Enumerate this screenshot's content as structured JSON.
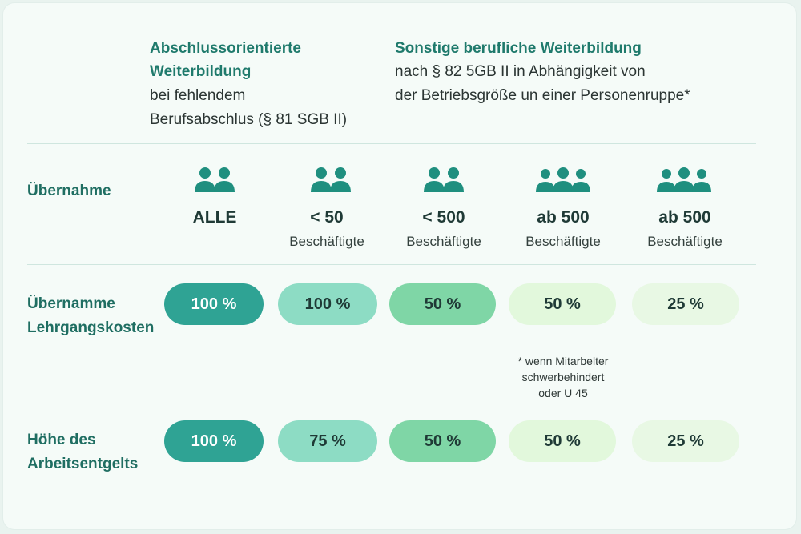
{
  "header": {
    "left_title_1": "Abschlussorientierte",
    "left_title_2": "Weiterbildung",
    "left_sub_1": "bei fehlendem",
    "left_sub_2": "Berufsabschlus (§ 81 SGB II)",
    "right_title": "Sonstige berufliche Weiterbildung",
    "right_sub_1": "nach § 82 5GB II in Abhängigkeit von",
    "right_sub_2": "der Betriebsgröße un einer Personenruppe*"
  },
  "rows": {
    "uebernahme": "Übernahme",
    "lehrgang_1": "Übernamme",
    "lehrgang_2": "Lehrgangskosten",
    "entgelt_1": "Höhe des",
    "entgelt_2": "Arbeitsentgelts"
  },
  "columns": [
    {
      "main": "ALLE",
      "sub": "",
      "icon": "two-people-icon"
    },
    {
      "main": "< 50",
      "sub": "Beschäftigte",
      "icon": "two-people-icon"
    },
    {
      "main": "< 500",
      "sub": "Beschäftigte",
      "icon": "two-people-icon"
    },
    {
      "main": "ab 500",
      "sub": "Beschäftigte",
      "icon": "three-people-icon"
    },
    {
      "main": "ab 500",
      "sub": "Beschäftigte",
      "icon": "three-people-icon"
    }
  ],
  "lehrgangskosten": [
    "100 %",
    "100 %",
    "50 %",
    "50 %",
    "25 %"
  ],
  "arbeitsentgelt": [
    "100 %",
    "75 %",
    "50 %",
    "50 %",
    "25 %"
  ],
  "note": {
    "line1": "* wenn Mitarbelter",
    "line2": "schwerbehindert",
    "line3": "oder U 45"
  },
  "colors": {
    "pill_1": "#2fa394",
    "pill_2": "#8ddcc4",
    "pill_3": "#7fd6a6",
    "pill_4": "#e2f8dc",
    "pill_5": "#e8f8e4",
    "accent_text": "#1f7a6c"
  }
}
